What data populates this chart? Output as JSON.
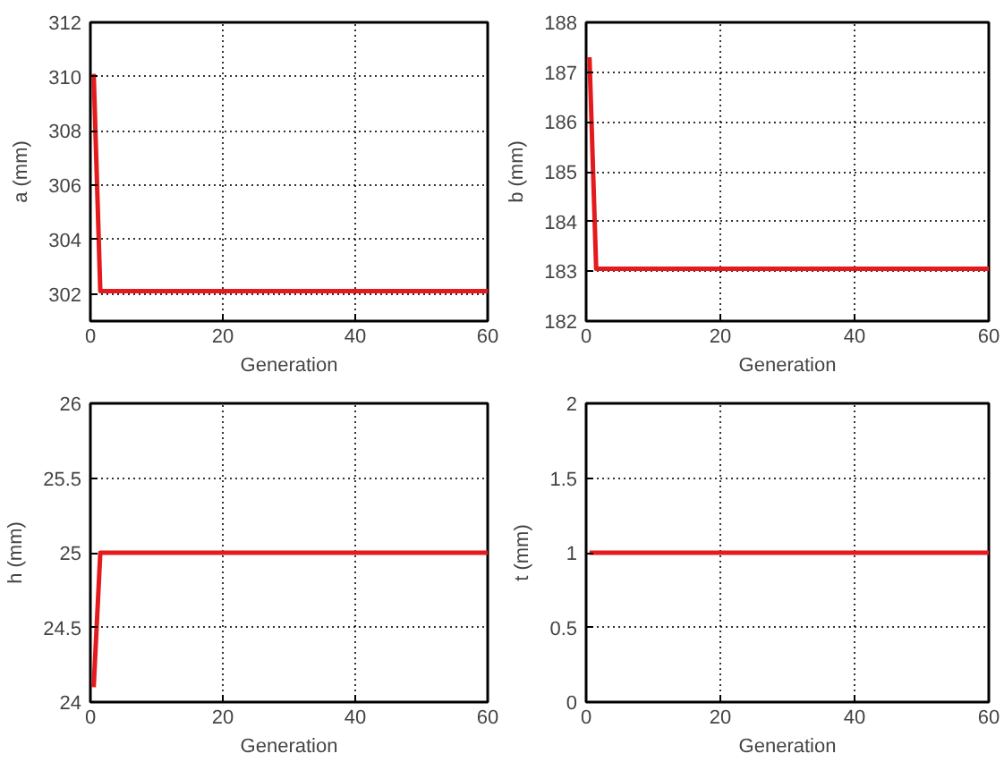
{
  "chart_data": [
    {
      "type": "line",
      "xlabel": "Generation",
      "ylabel": "a (mm)",
      "x": [
        0.5,
        1.5,
        60
      ],
      "series": [
        {
          "color": "#e41a1c",
          "values": [
            310.1,
            302.1,
            302.1
          ]
        }
      ],
      "xlim": [
        0,
        60
      ],
      "xticks": [
        0,
        20,
        40,
        60
      ],
      "ylim": [
        301,
        312
      ],
      "yticks": [
        302,
        304,
        306,
        308,
        310,
        312
      ],
      "grid": true,
      "line_style": "solid"
    },
    {
      "type": "line",
      "xlabel": "Generation",
      "ylabel": "b (mm)",
      "x": [
        0.5,
        1.5,
        60
      ],
      "series": [
        {
          "color": "#e41a1c",
          "values": [
            187.3,
            183.05,
            183.05
          ]
        }
      ],
      "xlim": [
        0,
        60
      ],
      "xticks": [
        0,
        20,
        40,
        60
      ],
      "ylim": [
        182,
        188
      ],
      "yticks": [
        182,
        183,
        184,
        185,
        186,
        187,
        188
      ],
      "grid": true,
      "line_style": "solid"
    },
    {
      "type": "line",
      "xlabel": "Generation",
      "ylabel": "h (mm)",
      "x": [
        0.5,
        1.5,
        60
      ],
      "series": [
        {
          "color": "#e41a1c",
          "values": [
            24.1,
            25,
            25
          ]
        }
      ],
      "xlim": [
        0,
        60
      ],
      "xticks": [
        0,
        20,
        40,
        60
      ],
      "ylim": [
        24,
        26
      ],
      "yticks": [
        24,
        24.5,
        25,
        25.5,
        26
      ],
      "grid": true,
      "line_style": "solid"
    },
    {
      "type": "line",
      "xlabel": "Generation",
      "ylabel": "t (mm)",
      "series": [
        {
          "color": "#e41a1c",
          "x": [
            0.5,
            60
          ],
          "values": [
            1,
            1
          ]
        }
      ],
      "xlim": [
        0,
        60
      ],
      "xticks": [
        0,
        20,
        40,
        60
      ],
      "ylim": [
        0,
        2
      ],
      "yticks": [
        0,
        0.5,
        1,
        1.5,
        2
      ],
      "grid": true,
      "line_style": "solid"
    }
  ]
}
